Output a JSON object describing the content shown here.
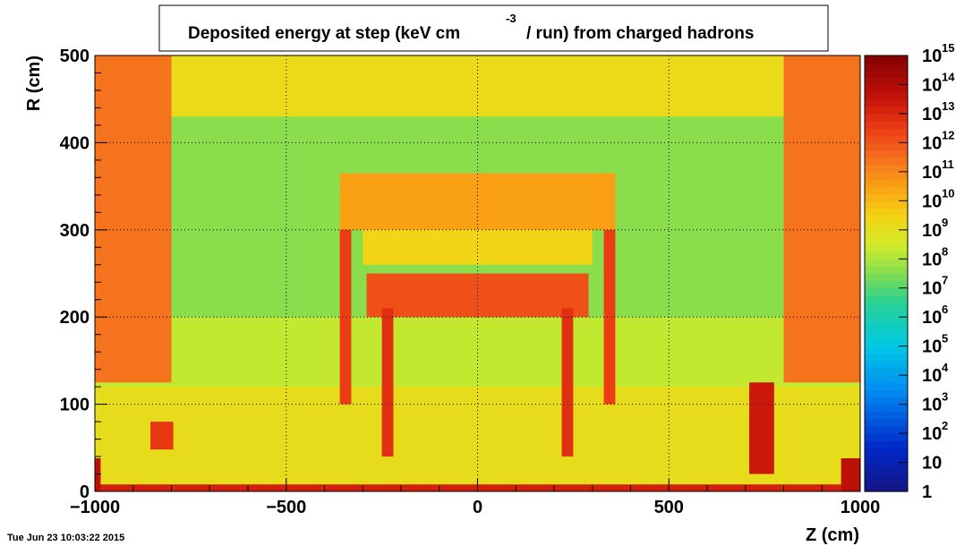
{
  "chart_data": {
    "type": "heatmap",
    "title_main": "Deposited energy at step (keV cm",
    "title_exp": "-3",
    "title_tail": "/ run)  from   charged hadrons",
    "xlabel": "Z (cm)",
    "ylabel": "R (cm)",
    "xlim": [
      -1000,
      1000
    ],
    "ylim": [
      0,
      500
    ],
    "x_ticks": [
      "−1000",
      "−500",
      "0",
      "500",
      "1000"
    ],
    "x_tick_values": [
      -1000,
      -500,
      0,
      500,
      1000
    ],
    "y_ticks": [
      "0",
      "100",
      "200",
      "300",
      "400",
      "500"
    ],
    "y_tick_values": [
      0,
      100,
      200,
      300,
      400,
      500
    ],
    "color_scale": "log",
    "z_range": [
      1,
      1000000000000000.0
    ],
    "colorbar_exponents": [
      "1",
      "10",
      "10",
      "10",
      "10",
      "10",
      "10",
      "10",
      "10",
      "10",
      "10",
      "10",
      "10",
      "10",
      "10",
      "10"
    ],
    "colorbar_sup": [
      "",
      "",
      "2",
      "3",
      "4",
      "5",
      "6",
      "7",
      "8",
      "9",
      "10",
      "11",
      "12",
      "13",
      "14",
      "15"
    ],
    "grid": true,
    "regions": [
      {
        "name": "background",
        "z0": -1000,
        "z1": 1000,
        "r0": 0,
        "r1": 500,
        "level": 8.3
      },
      {
        "name": "upper band",
        "z0": -1000,
        "z1": 1000,
        "r0": 430,
        "r1": 500,
        "level": 9.2
      },
      {
        "name": "middle band",
        "z0": -800,
        "z1": 800,
        "r0": 200,
        "r1": 430,
        "level": 7.6
      },
      {
        "name": "low band",
        "z0": -1000,
        "z1": 1000,
        "r0": 0,
        "r1": 120,
        "level": 9.1
      },
      {
        "name": "left endcap",
        "z0": -1000,
        "z1": -800,
        "r0": 125,
        "r1": 500,
        "level": 11.4
      },
      {
        "name": "right endcap",
        "z0": 800,
        "z1": 1000,
        "r0": 125,
        "r1": 500,
        "level": 11.4
      },
      {
        "name": "upper arch",
        "z0": -360,
        "z1": 360,
        "r0": 300,
        "r1": 365,
        "level": 10.5
      },
      {
        "name": "calorimeter",
        "z0": -300,
        "z1": 300,
        "r0": 260,
        "r1": 300,
        "level": 9.4
      },
      {
        "name": "inner barrel",
        "z0": -290,
        "z1": 290,
        "r0": 200,
        "r1": 250,
        "level": 12.1
      },
      {
        "name": "left wall",
        "z0": -360,
        "z1": -330,
        "r0": 100,
        "r1": 300,
        "level": 12.5
      },
      {
        "name": "right wall",
        "z0": 330,
        "z1": 360,
        "r0": 100,
        "r1": 300,
        "level": 12.5
      },
      {
        "name": "inner left",
        "z0": -250,
        "z1": -220,
        "r0": 40,
        "r1": 210,
        "level": 12.8
      },
      {
        "name": "inner right",
        "z0": 220,
        "z1": 250,
        "r0": 40,
        "r1": 210,
        "level": 12.8
      },
      {
        "name": "beamline",
        "z0": -1000,
        "z1": 1000,
        "r0": 0,
        "r1": 8,
        "level": 13.2
      },
      {
        "name": "forward left",
        "z0": -1000,
        "z1": -985,
        "r0": 0,
        "r1": 38,
        "level": 13.8
      },
      {
        "name": "forward right",
        "z0": 950,
        "z1": 1000,
        "r0": 0,
        "r1": 38,
        "level": 13.8
      },
      {
        "name": "block left",
        "z0": -855,
        "z1": -795,
        "r0": 48,
        "r1": 80,
        "level": 12.6
      },
      {
        "name": "right tower",
        "z0": 710,
        "z1": 775,
        "r0": 20,
        "r1": 125,
        "level": 13.4
      }
    ]
  },
  "footer": {
    "timestamp": "Tue Jun 23 10:03:22 2015"
  }
}
